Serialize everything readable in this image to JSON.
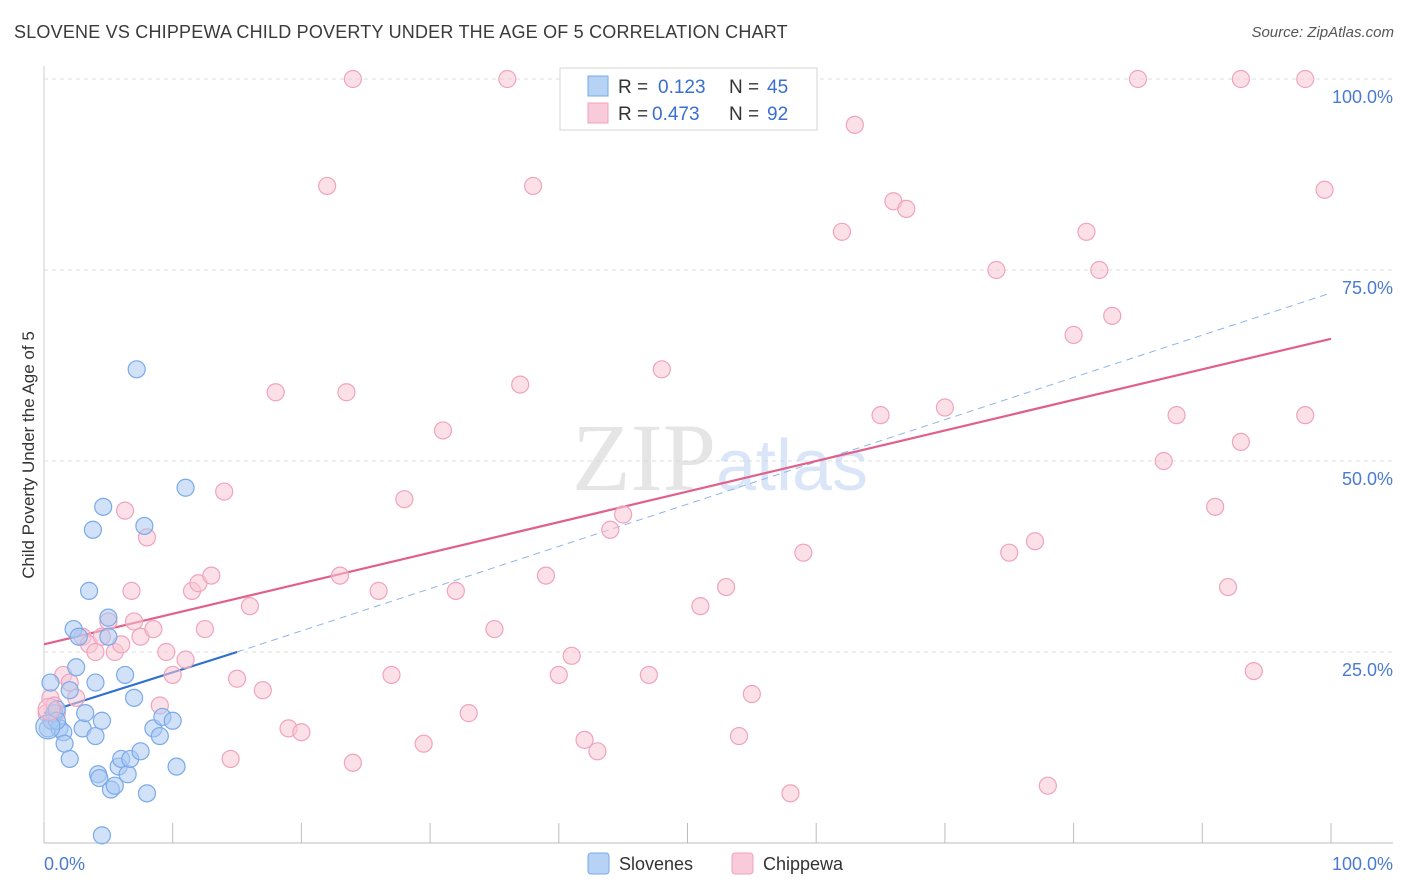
{
  "chart_data": {
    "type": "scatter",
    "title": "SLOVENE VS CHIPPEWA CHILD POVERTY UNDER THE AGE OF 5 CORRELATION CHART",
    "source": "Source: ZipAtlas.com",
    "xlabel": "",
    "ylabel": "Child Poverty Under the Age of 5",
    "xlim": [
      0,
      100
    ],
    "ylim": [
      0,
      100
    ],
    "x_tick_labels": [
      "0.0%",
      "100.0%"
    ],
    "y_ticks": [
      25,
      50,
      75,
      100
    ],
    "y_tick_labels": [
      "25.0%",
      "50.0%",
      "75.0%",
      "100.0%"
    ],
    "grid": true,
    "watermark": "ZIPatlas",
    "legend": {
      "rows": [
        {
          "series": "Slovenes",
          "r_label": "R =",
          "r_value": "0.123",
          "n_label": "N =",
          "n_value": "45"
        },
        {
          "series": "Chippewa",
          "r_label": "R =",
          "r_value": "0.473",
          "n_label": "N =",
          "n_value": "92"
        }
      ]
    },
    "series": [
      {
        "name": "Slovenes",
        "color": "#7aaae8",
        "fill": "#a9c9f2",
        "line_color": "#2f6fcf",
        "trend": {
          "x0": 0,
          "y0": 17,
          "x1": 15,
          "y1": 25,
          "extended_x1": 100,
          "extended_y1": 72
        },
        "points": [
          [
            0.3,
            15
          ],
          [
            0.5,
            21
          ],
          [
            0.6,
            16
          ],
          [
            0.8,
            17
          ],
          [
            1,
            17.5
          ],
          [
            1.2,
            15
          ],
          [
            1.5,
            14.5
          ],
          [
            1.6,
            13
          ],
          [
            2,
            11
          ],
          [
            2,
            20
          ],
          [
            2.3,
            28
          ],
          [
            2.5,
            23
          ],
          [
            2.7,
            27
          ],
          [
            3,
            15
          ],
          [
            3.2,
            17
          ],
          [
            3.5,
            33
          ],
          [
            3.8,
            41
          ],
          [
            4,
            21
          ],
          [
            4,
            14
          ],
          [
            4.2,
            9
          ],
          [
            4.3,
            8.5
          ],
          [
            4.5,
            16
          ],
          [
            4.6,
            44
          ],
          [
            5,
            29.5
          ],
          [
            5,
            27
          ],
          [
            5.2,
            7
          ],
          [
            5.5,
            7.5
          ],
          [
            5.8,
            10
          ],
          [
            6,
            11
          ],
          [
            6.3,
            22
          ],
          [
            6.5,
            9
          ],
          [
            6.7,
            11
          ],
          [
            7,
            19
          ],
          [
            7.2,
            62
          ],
          [
            7.5,
            12
          ],
          [
            7.8,
            41.5
          ],
          [
            8,
            6.5
          ],
          [
            8.5,
            15
          ],
          [
            9,
            14
          ],
          [
            9.2,
            16.5
          ],
          [
            10,
            16
          ],
          [
            10.3,
            10
          ],
          [
            11,
            46.5
          ],
          [
            4.5,
            1
          ],
          [
            1,
            16
          ]
        ]
      },
      {
        "name": "Chippewa",
        "color": "#f0a3bd",
        "fill": "#f8c7d6",
        "line_color": "#e0608a",
        "trend": {
          "x0": 0,
          "y0": 26,
          "x1": 100,
          "y1": 66
        },
        "points": [
          [
            0.2,
            17
          ],
          [
            0.5,
            19
          ],
          [
            0.8,
            18
          ],
          [
            1,
            17
          ],
          [
            1.5,
            22
          ],
          [
            2,
            21
          ],
          [
            2.5,
            19
          ],
          [
            3,
            27
          ],
          [
            3.5,
            26
          ],
          [
            4,
            25
          ],
          [
            4.5,
            27
          ],
          [
            5,
            29
          ],
          [
            5.5,
            25
          ],
          [
            6,
            26
          ],
          [
            6.3,
            43.5
          ],
          [
            6.8,
            33
          ],
          [
            7,
            29
          ],
          [
            7.5,
            27
          ],
          [
            8,
            40
          ],
          [
            8.5,
            28
          ],
          [
            9,
            18
          ],
          [
            9.5,
            25
          ],
          [
            10,
            22
          ],
          [
            11,
            24
          ],
          [
            11.5,
            33
          ],
          [
            12,
            34
          ],
          [
            12.5,
            28
          ],
          [
            13,
            35
          ],
          [
            14,
            46
          ],
          [
            14.5,
            11
          ],
          [
            15,
            21.5
          ],
          [
            16,
            31
          ],
          [
            17,
            20
          ],
          [
            18,
            59
          ],
          [
            19,
            15
          ],
          [
            20,
            14.5
          ],
          [
            22,
            86
          ],
          [
            23,
            35
          ],
          [
            23.5,
            59
          ],
          [
            24,
            10.5
          ],
          [
            24,
            100
          ],
          [
            26,
            33
          ],
          [
            27,
            22
          ],
          [
            28,
            45
          ],
          [
            29.5,
            13
          ],
          [
            31,
            54
          ],
          [
            32,
            33
          ],
          [
            33,
            17
          ],
          [
            35,
            28
          ],
          [
            36,
            100
          ],
          [
            37,
            60
          ],
          [
            38,
            86
          ],
          [
            39,
            35
          ],
          [
            40,
            22
          ],
          [
            41,
            24.5
          ],
          [
            42,
            13.5
          ],
          [
            43,
            12
          ],
          [
            44,
            41
          ],
          [
            45,
            43
          ],
          [
            47,
            22
          ],
          [
            48,
            62
          ],
          [
            51,
            31
          ],
          [
            53,
            33.5
          ],
          [
            54,
            14
          ],
          [
            55,
            19.5
          ],
          [
            58,
            6.5
          ],
          [
            59,
            38
          ],
          [
            62,
            80
          ],
          [
            63,
            94
          ],
          [
            65,
            56
          ],
          [
            66,
            84
          ],
          [
            67,
            83
          ],
          [
            70,
            57
          ],
          [
            74,
            75
          ],
          [
            75,
            38
          ],
          [
            77,
            39.5
          ],
          [
            78,
            7.5
          ],
          [
            80,
            66.5
          ],
          [
            81,
            80
          ],
          [
            82,
            75
          ],
          [
            83,
            69
          ],
          [
            85,
            100
          ],
          [
            87,
            50
          ],
          [
            88,
            56
          ],
          [
            91,
            44
          ],
          [
            92,
            33.5
          ],
          [
            93,
            52.5
          ],
          [
            94,
            22.5
          ],
          [
            93,
            100
          ],
          [
            98,
            100
          ],
          [
            98,
            56
          ],
          [
            99.5,
            85.5
          ]
        ]
      }
    ]
  }
}
